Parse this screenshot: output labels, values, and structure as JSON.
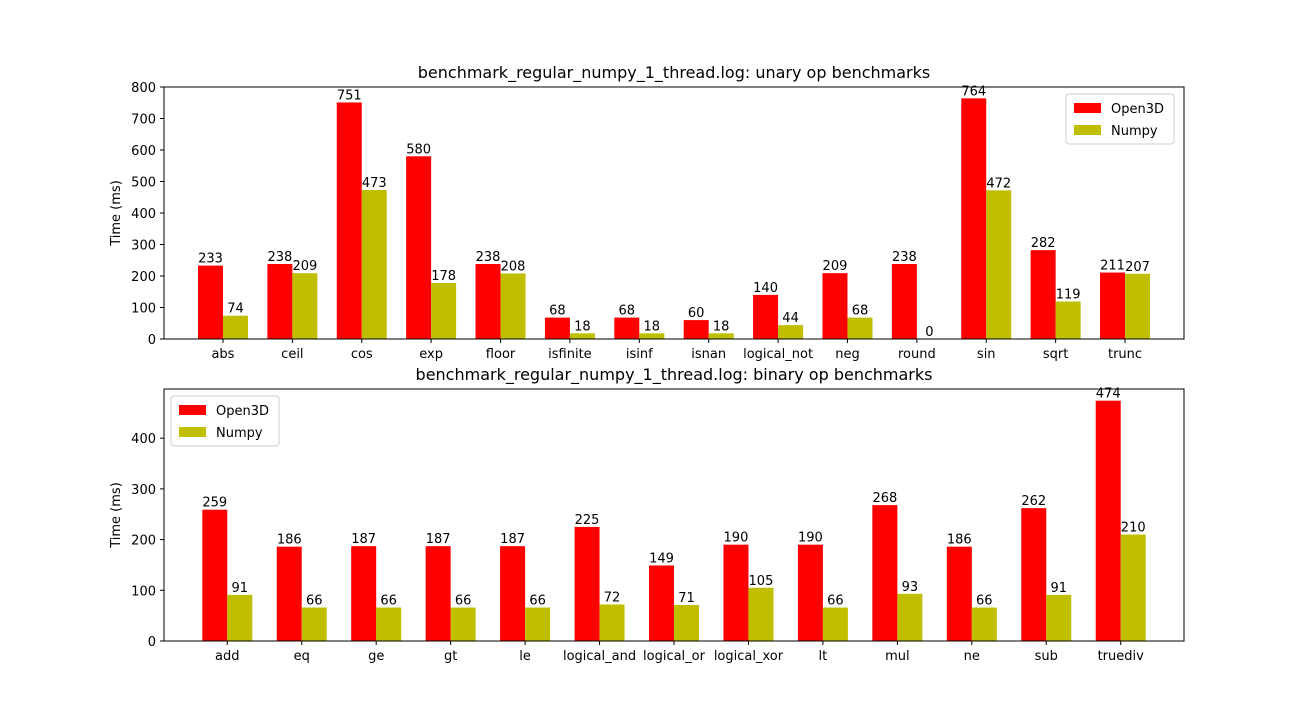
{
  "chart_data": [
    {
      "type": "bar",
      "title": "benchmark_regular_numpy_1_thread.log: unary op benchmarks",
      "ylabel": "Time (ms)",
      "xlabel": "",
      "ylim": [
        0,
        800
      ],
      "yticks": [
        0,
        100,
        200,
        300,
        400,
        500,
        600,
        700,
        800
      ],
      "legend_position": "top-right",
      "categories": [
        "abs",
        "ceil",
        "cos",
        "exp",
        "floor",
        "isfinite",
        "isinf",
        "isnan",
        "logical_not",
        "neg",
        "round",
        "sin",
        "sqrt",
        "trunc"
      ],
      "series": [
        {
          "name": "Open3D",
          "color": "#ff0000",
          "values": [
            233,
            238,
            751,
            580,
            238,
            68,
            68,
            60,
            140,
            209,
            238,
            764,
            282,
            211
          ]
        },
        {
          "name": "Numpy",
          "color": "#bfbf00",
          "values": [
            74,
            209,
            473,
            178,
            208,
            18,
            18,
            18,
            44,
            68,
            0,
            472,
            119,
            207
          ]
        }
      ]
    },
    {
      "type": "bar",
      "title": "benchmark_regular_numpy_1_thread.log: binary op benchmarks",
      "ylabel": "Time (ms)",
      "xlabel": "",
      "ylim": [
        0,
        497
      ],
      "yticks": [
        0,
        100,
        200,
        300,
        400
      ],
      "legend_position": "top-left",
      "categories": [
        "add",
        "eq",
        "ge",
        "gt",
        "le",
        "logical_and",
        "logical_or",
        "logical_xor",
        "lt",
        "mul",
        "ne",
        "sub",
        "truediv"
      ],
      "series": [
        {
          "name": "Open3D",
          "color": "#ff0000",
          "values": [
            259,
            186,
            187,
            187,
            187,
            225,
            149,
            190,
            190,
            268,
            186,
            262,
            474
          ]
        },
        {
          "name": "Numpy",
          "color": "#bfbf00",
          "values": [
            91,
            66,
            66,
            66,
            66,
            72,
            71,
            105,
            66,
            93,
            66,
            91,
            210
          ]
        }
      ]
    }
  ]
}
